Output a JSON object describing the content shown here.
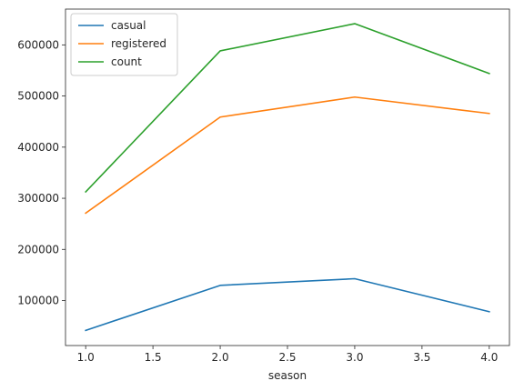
{
  "chart_data": {
    "type": "line",
    "title": "",
    "xlabel": "season",
    "ylabel": "",
    "x": [
      1.0,
      2.0,
      3.0,
      4.0
    ],
    "xlim": [
      0.85,
      4.15
    ],
    "ylim": [
      12000,
      670000
    ],
    "xticks": [
      1.0,
      1.5,
      2.0,
      2.5,
      3.0,
      3.5,
      4.0
    ],
    "xtick_labels": [
      "1.0",
      "1.5",
      "2.0",
      "2.5",
      "3.0",
      "3.5",
      "4.0"
    ],
    "yticks": [
      100000,
      200000,
      300000,
      400000,
      500000,
      600000
    ],
    "ytick_labels": [
      "100000",
      "200000",
      "300000",
      "400000",
      "500000",
      "600000"
    ],
    "grid": false,
    "legend_position": "top-left",
    "series": [
      {
        "name": "casual",
        "color": "#1f77b4",
        "values": [
          41605,
          129672,
          142718,
          78140
        ]
      },
      {
        "name": "registered",
        "color": "#ff7f0e",
        "values": [
          270893,
          458807,
          497944,
          465894
        ]
      },
      {
        "name": "count",
        "color": "#2ca02c",
        "values": [
          312498,
          588282,
          641479,
          544034
        ]
      }
    ]
  }
}
